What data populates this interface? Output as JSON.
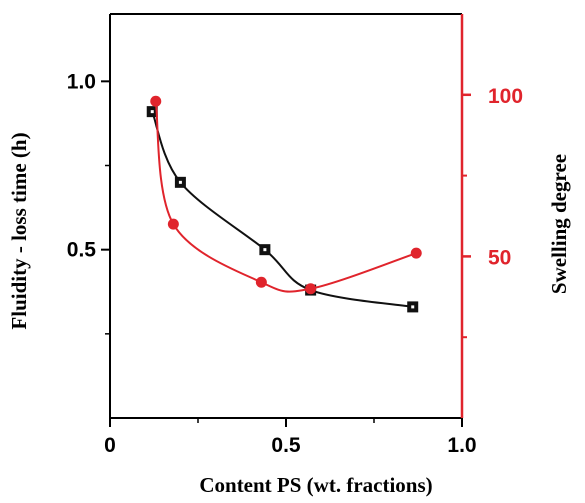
{
  "chart_data": {
    "type": "line",
    "title": "",
    "xlabel": "Content PS (wt. fractions)",
    "ylabel_left": "Fluidity - loss time (h)",
    "ylabel_right": "Swelling degree",
    "xlim": [
      0,
      1.0
    ],
    "ylim_left": [
      0.0,
      1.2
    ],
    "ylim_right": [
      0,
      125
    ],
    "x_ticks": [
      0,
      0.5,
      1.0
    ],
    "x_tick_labels": [
      "0",
      "0.5",
      "1.0"
    ],
    "y_left_ticks": [
      0.5,
      1.0
    ],
    "y_left_tick_labels": [
      "0.5",
      "1.0"
    ],
    "y_right_ticks": [
      50,
      100
    ],
    "y_right_tick_labels": [
      "50",
      "100"
    ],
    "grid": false,
    "colors": {
      "left_axis": "#000000",
      "right_axis": "#e0242c"
    },
    "series": [
      {
        "axis": "left",
        "marker": "square",
        "color": "#111111",
        "x": [
          0.12,
          0.2,
          0.44,
          0.57,
          0.86
        ],
        "y": [
          0.91,
          0.7,
          0.5,
          0.38,
          0.33
        ]
      },
      {
        "axis": "right",
        "marker": "circle",
        "color": "#e0242c",
        "x": [
          0.13,
          0.18,
          0.43,
          0.57,
          0.87
        ],
        "y": [
          98,
          60,
          42,
          40,
          51
        ]
      }
    ]
  }
}
